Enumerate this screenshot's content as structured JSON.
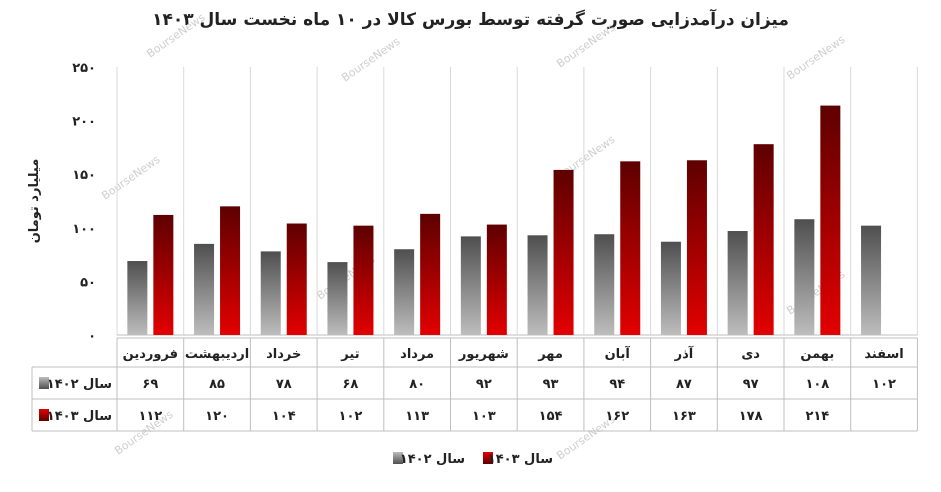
{
  "title": "میزان درآمدزایی صورت گرفته توسط بورس کالا در ۱۰ ماه نخست سال ۱۴۰۳",
  "watermark": "BourseNews",
  "colors": {
    "series_1402_dark": "#4f4f4f",
    "series_1402_light": "#bdbdbd",
    "series_1403_dark": "#5e0000",
    "series_1403_light": "#e30000",
    "grid": "#d9d9d9",
    "text": "#222222"
  },
  "chart_data": {
    "type": "bar",
    "title": "میزان درآمدزایی صورت گرفته توسط بورس کالا در ۱۰ ماه نخست سال ۱۴۰۳",
    "ylabel": "میلیارد تومان",
    "xlabel": "",
    "ylim": [
      0,
      250
    ],
    "yticks": [
      "۰",
      "۵۰",
      "۱۰۰",
      "۱۵۰",
      "۲۰۰",
      "۲۵۰"
    ],
    "grid": true,
    "legend": "bottom",
    "categories": [
      "فروردین",
      "اردیبهشت",
      "خرداد",
      "تیر",
      "مرداد",
      "شهریور",
      "مهر",
      "آبان",
      "آذر",
      "دی",
      "بهمن",
      "اسفند"
    ],
    "series": [
      {
        "name": "سال ۱۴۰۲",
        "values": [
          69,
          85,
          78,
          68,
          80,
          92,
          93,
          94,
          87,
          97,
          108,
          102
        ],
        "labels": [
          "۶۹",
          "۸۵",
          "۷۸",
          "۶۸",
          "۸۰",
          "۹۲",
          "۹۳",
          "۹۴",
          "۸۷",
          "۹۷",
          "۱۰۸",
          "۱۰۲"
        ]
      },
      {
        "name": "سال ۱۴۰۳",
        "values": [
          112,
          120,
          104,
          102,
          113,
          103,
          154,
          162,
          163,
          178,
          214,
          null
        ],
        "labels": [
          "۱۱۲",
          "۱۲۰",
          "۱۰۴",
          "۱۰۲",
          "۱۱۳",
          "۱۰۳",
          "۱۵۴",
          "۱۶۲",
          "۱۶۳",
          "۱۷۸",
          "۲۱۴",
          ""
        ]
      }
    ]
  }
}
